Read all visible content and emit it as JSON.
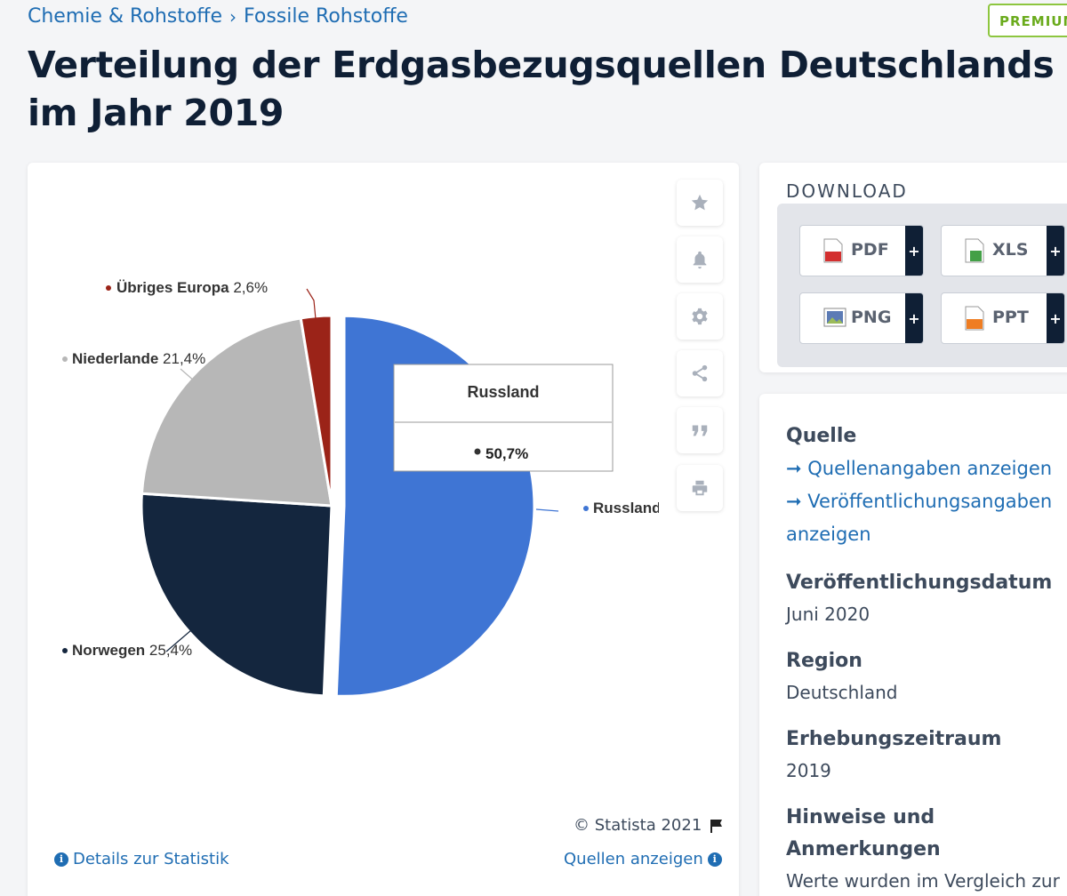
{
  "breadcrumb": {
    "items": [
      "Chemie & Rohstoffe",
      "Fossile Rohstoffe"
    ],
    "separator": "›"
  },
  "badge": "PREMIUM",
  "page_title": "Verteilung der Erdgasbezugsquellen Deutschlands im Jahr 2019",
  "chart_data": {
    "type": "pie",
    "title": "Verteilung der Erdgasbezugsquellen Deutschlands im Jahr 2019",
    "unit": "%",
    "slices": [
      {
        "label": "Russland",
        "value": 50.7,
        "value_label": "50,7%",
        "color": "#3f75d4"
      },
      {
        "label": "Norwegen",
        "value": 25.4,
        "value_label": "25,4%",
        "color": "#14263e"
      },
      {
        "label": "Niederlande",
        "value": 21.4,
        "value_label": "21,4%",
        "color": "#b7b7b7"
      },
      {
        "label": "Übriges Europa",
        "value": 2.6,
        "value_label": "2,6%",
        "color": "#9b2318"
      }
    ],
    "tooltip": {
      "title": "Russland",
      "value": "50,7%"
    }
  },
  "chart_actions": [
    "star-icon",
    "bell-icon",
    "gear-icon",
    "share-icon",
    "quote-icon",
    "print-icon"
  ],
  "chart_footer": {
    "copyright": "© Statista 2021",
    "details_link": "Details zur Statistik",
    "sources_link": "Quellen anzeigen"
  },
  "download": {
    "heading": "DOWNLOAD",
    "buttons": [
      {
        "label": "PDF",
        "color": "#d32f2f"
      },
      {
        "label": "XLS",
        "color": "#43a047"
      },
      {
        "label": "PNG",
        "color": "#5c7bb5"
      },
      {
        "label": "PPT",
        "color": "#ef7d22"
      }
    ],
    "plus": "+"
  },
  "meta": {
    "source_label": "Quelle",
    "source_link_1": "➞ Quellenangaben anzeigen",
    "source_link_2a": "➞ Veröffentlichungsangaben",
    "source_link_2b": "anzeigen",
    "date_label": "Veröffentlichungsdatum",
    "date_value": "Juni 2020",
    "region_label": "Region",
    "region_value": "Deutschland",
    "period_label": "Erhebungszeitraum",
    "period_value": "2019",
    "notes_label_1": "Hinweise und",
    "notes_label_2": "Anmerkungen",
    "notes_value": "Werte wurden im Vergleich zur"
  }
}
